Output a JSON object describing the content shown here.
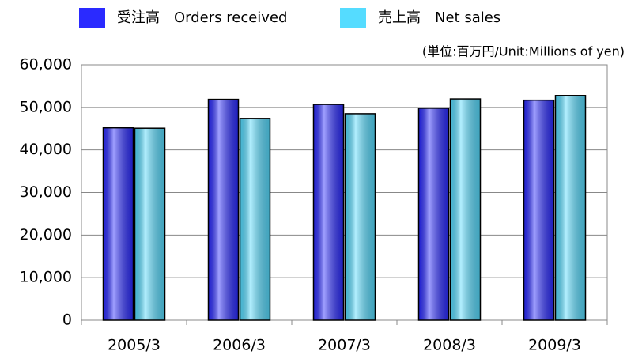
{
  "chart_data": {
    "type": "bar",
    "unit_note": "(単位:百万円/Unit:Millions of yen)",
    "categories": [
      "2005/3",
      "2006/3",
      "2007/3",
      "2008/3",
      "2009/3"
    ],
    "series": [
      {
        "name": "受注高　Orders received",
        "color": "#2a2aff",
        "values": [
          45200,
          51900,
          50700,
          49800,
          51700
        ]
      },
      {
        "name": "売上高　Net sales",
        "color": "#55dcff",
        "values": [
          45100,
          47400,
          48500,
          52000,
          52800
        ]
      }
    ],
    "ylim": [
      0,
      60000
    ],
    "yticks": [
      0,
      {
        "value": 10000,
        "label": "10,000"
      },
      {
        "value": 20000,
        "label": "20,000"
      },
      {
        "value": 30000,
        "label": "30,000"
      },
      {
        "value": 40000,
        "label": "40,000"
      },
      {
        "value": 50000,
        "label": "50,000"
      },
      {
        "value": 60000,
        "label": "60,000"
      }
    ],
    "grid": true
  }
}
